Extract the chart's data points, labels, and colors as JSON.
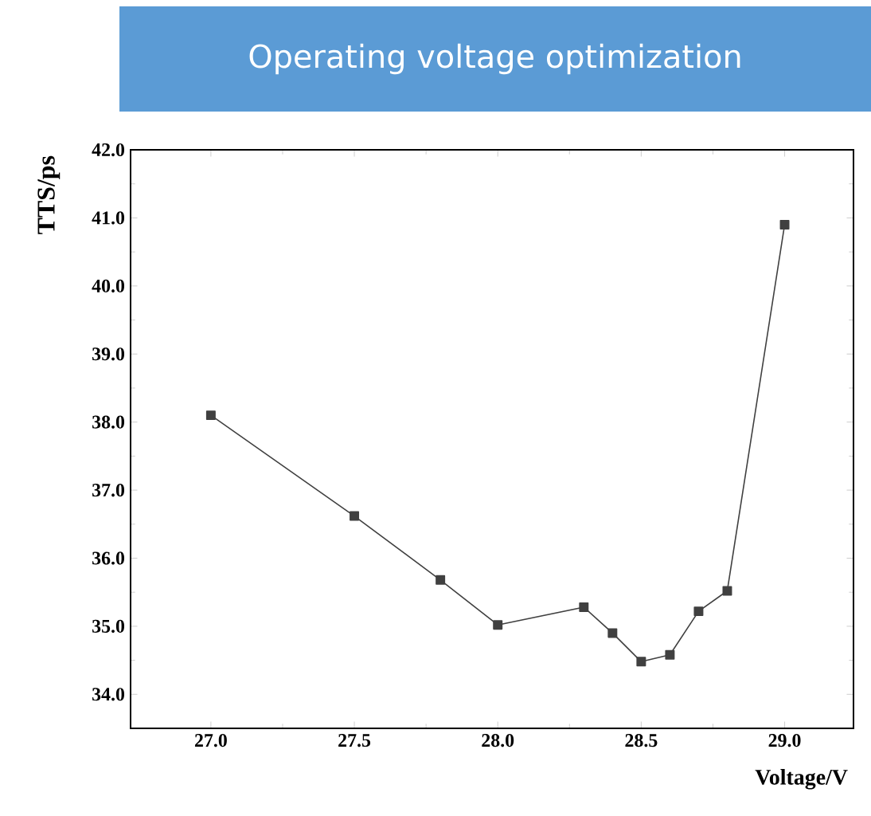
{
  "chart_data": {
    "type": "line",
    "title": "Operating voltage optimization",
    "xlabel": "Voltage/V",
    "ylabel": "TTS/ps",
    "x": [
      27.0,
      27.5,
      27.8,
      28.0,
      28.3,
      28.4,
      28.5,
      28.6,
      28.7,
      28.8,
      29.0
    ],
    "series": [
      {
        "color": "#404040",
        "values": [
          38.1,
          36.62,
          35.68,
          35.02,
          35.28,
          34.9,
          34.48,
          34.58,
          35.22,
          35.52,
          40.9
        ]
      }
    ],
    "xlim": [
      26.72,
      29.24
    ],
    "ylim": [
      33.5,
      42.0
    ],
    "xticks": [
      {
        "value": 27,
        "label": "27.0"
      },
      {
        "value": 27.5,
        "label": "27.5"
      },
      {
        "value": 28,
        "label": "28.0"
      },
      {
        "value": 28.5,
        "label": "28.5"
      },
      {
        "value": 29,
        "label": "29.0"
      }
    ],
    "yticks": [
      {
        "value": 34,
        "label": "34.0"
      },
      {
        "value": 35,
        "label": "35.0"
      },
      {
        "value": 36,
        "label": "36.0"
      },
      {
        "value": 37,
        "label": "37.0"
      },
      {
        "value": 38,
        "label": "38.0"
      },
      {
        "value": 39,
        "label": "39.0"
      },
      {
        "value": 40,
        "label": "40.0"
      },
      {
        "value": 41,
        "label": "41.0"
      },
      {
        "value": 42,
        "label": "42.0"
      }
    ],
    "grid": false,
    "marker": "square",
    "line_style": "solid"
  }
}
